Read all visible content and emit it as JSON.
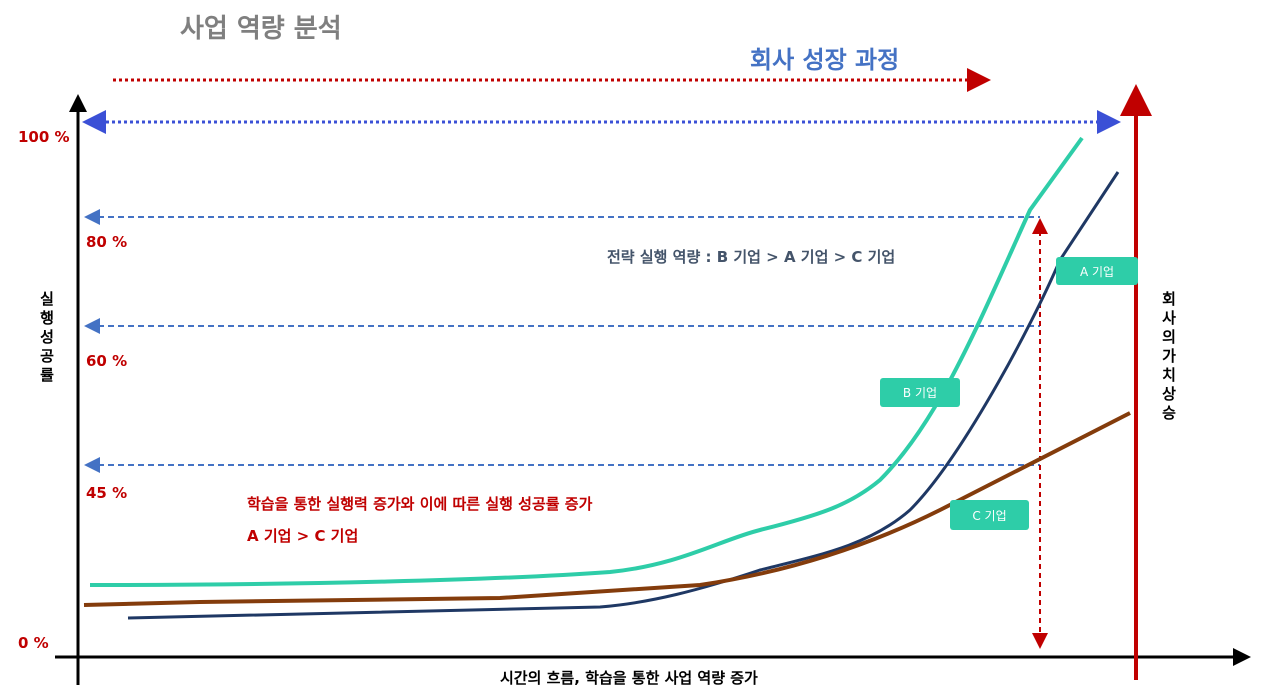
{
  "header": {
    "title": "사업 역량 분석",
    "subtitle": "회사 성장 과정"
  },
  "y_axis": {
    "title": "실행 성공률",
    "levels": [
      "100 %",
      "80 %",
      "60 %",
      "45 %",
      "0 %"
    ]
  },
  "x_axis": {
    "title": "시간의 흐름, 학습을 통한 사업 역량 증가"
  },
  "right_axis": {
    "title": "회사의 가치 상승"
  },
  "annotations": {
    "strategy": "전략 실행 역량 : B 기업 > A 기업 > C 기업",
    "learning": "학습을 통한 실행력 증가와 이에 따른 실행 성공률 증가",
    "learning_order": "A 기업 > C 기업"
  },
  "curves": [
    {
      "label": "A 기업"
    },
    {
      "label": "B 기업"
    },
    {
      "label": "C 기업"
    }
  ]
}
